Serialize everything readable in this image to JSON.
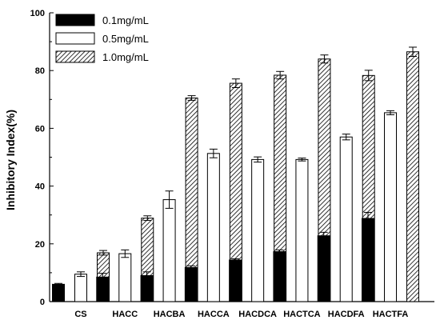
{
  "chart_data": {
    "type": "bar",
    "categories": [
      "CS",
      "HACC",
      "HACBA",
      "HACCA",
      "HACDCA",
      "HACTCA",
      "HACDFA",
      "HACTFA"
    ],
    "series": [
      {
        "name": "0.1mg/mL",
        "fill": "solid-black",
        "values": [
          6.0,
          8.5,
          9.0,
          11.8,
          14.4,
          17.3,
          22.8,
          28.8
        ],
        "errors": [
          0.3,
          1.3,
          1.3,
          0.6,
          0.4,
          0.6,
          1.2,
          2.1
        ]
      },
      {
        "name": "0.5mg/mL",
        "fill": "white",
        "values": [
          9.5,
          16.6,
          35.3,
          51.3,
          49.2,
          49.2,
          57.0,
          65.4
        ],
        "errors": [
          0.8,
          1.3,
          3.0,
          1.5,
          0.9,
          0.5,
          1.0,
          0.7
        ]
      },
      {
        "name": "1.0mg/mL",
        "fill": "hatched",
        "values": [
          16.9,
          28.9,
          70.5,
          75.6,
          78.4,
          84.0,
          78.3,
          86.5
        ],
        "errors": [
          0.8,
          0.8,
          0.8,
          1.5,
          1.3,
          1.4,
          1.8,
          1.6
        ]
      }
    ],
    "title": "",
    "xlabel": "",
    "ylabel": "Inhibitory Index(%)",
    "ylim": [
      0,
      100
    ],
    "yticks": [
      0,
      20,
      40,
      60,
      80,
      100
    ],
    "grid": false,
    "legend_position": "top-left",
    "colors": {
      "bar_stroke": "#000000",
      "solid_fill": "#000000",
      "open_fill": "#ffffff",
      "hatch_line": "#000000",
      "axis": "#000000",
      "text": "#000000"
    }
  }
}
